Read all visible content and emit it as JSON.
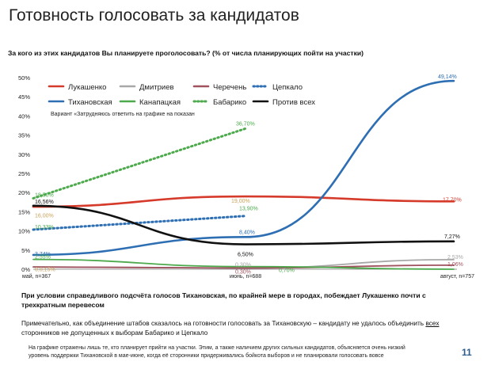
{
  "slide": {
    "title": "Готовность голосовать за кандидатов",
    "question": "За кого из этих кандидатов Вы планируете проголосовать? (% от числа планирующих пойти на участки)",
    "headline": "При условии справедливого подсчёта голосов Тихановская, по крайней мере в городах, побеждает Лукашенко почти с трехкратным перевесом",
    "note_before": "Примечательно, как объединение штабов сказалось на готовности голосовать за Тихановскую – кандидату не удалось объединить ",
    "note_underlined": "всех",
    "note_after": " сторонников не допущенных к выборам Бабарико и Цепкало",
    "footnote": "На графике отражены лишь те, кто планирует прийти на участки. Этим, а также наличием других сильных кандидатов, объясняется очень низкий уровень поддержки Тихановской в мае-июне, когда её сторонники придерживались бойкота выборов и не планировали голосовать вовсе",
    "page_number": "11"
  },
  "chart_data": {
    "type": "line",
    "x": [
      "май, n=367",
      "июнь, n=688",
      "август, n=757"
    ],
    "ylim": [
      0,
      50
    ],
    "yticks": [
      "0%",
      "5%",
      "10%",
      "15%",
      "20%",
      "25%",
      "30%",
      "35%",
      "40%",
      "45%",
      "50%"
    ],
    "annotation": "Вариант «Затрудняюсь ответить на графике на показан",
    "grid": false,
    "legend_position": "top-left",
    "series": [
      {
        "name": "Лукашенко",
        "color": "#d63a2a",
        "dash": "solid",
        "values": [
          16.3,
          19.0,
          17.7
        ],
        "labels": [
          null,
          null,
          "17,70%"
        ]
      },
      {
        "name": "Дмитриев",
        "color": "#a8a8a8",
        "dash": "solid",
        "values": [
          0.6,
          0.3,
          2.5
        ],
        "labels": [
          null,
          "0,30%",
          "2,53%"
        ]
      },
      {
        "name": "Черечень",
        "color": "#a0525e",
        "dash": "solid",
        "values": [
          0.6,
          0.3,
          1.06
        ],
        "labels": [
          null,
          "0,30%",
          "1,06%"
        ]
      },
      {
        "name": "Цепкало",
        "color": "#2e6fb3",
        "dash": "dotted",
        "values": [
          10.33,
          13.9,
          null
        ],
        "labels": [
          "10,33%",
          "13,90%",
          null
        ]
      },
      {
        "name": "Тихановская",
        "color": "#2e6fb3",
        "dash": "solid",
        "values": [
          3.74,
          8.4,
          49.14
        ],
        "labels": [
          "3,74%",
          "8,40%",
          "49,14%"
        ]
      },
      {
        "name": "Канапацкая",
        "color": "#4caa4c",
        "dash": "solid",
        "values": [
          2.55,
          0.7,
          0.0
        ],
        "labels": [
          "2,55%",
          "0,70%",
          null
        ]
      },
      {
        "name": "Бабарико",
        "color": "#4caa4c",
        "dash": "dotted",
        "values": [
          18.5,
          36.7,
          null
        ],
        "labels": [
          "18,50%",
          "36,70%",
          null
        ]
      },
      {
        "name": "Против всех",
        "color": "#111111",
        "dash": "solid",
        "values": [
          16.56,
          6.5,
          7.27
        ],
        "labels": [
          "16,56%",
          "6,50%",
          "7,27%"
        ]
      }
    ],
    "extra_labels": [
      {
        "text": "16,00%",
        "x_index": 0,
        "value": 16.0,
        "color": "#c9a35a"
      },
      {
        "text": "0,0,15%",
        "x_index": 0,
        "value": 0.15,
        "color": "#c9a35a"
      },
      {
        "text": "19,00%",
        "x_index": 1,
        "value": 19.0,
        "color": "#c9a35a"
      }
    ]
  }
}
